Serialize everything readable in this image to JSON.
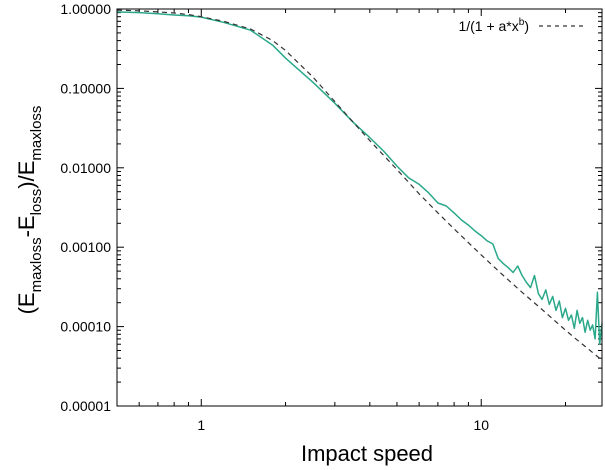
{
  "chart_data": {
    "type": "line",
    "xscale": "log",
    "yscale": "log",
    "xlim": [
      0.5,
      27
    ],
    "ylim": [
      1e-05,
      1
    ],
    "xlabel": "Impact speed",
    "ylabel_parts": {
      "open": "(E",
      "sub1": "maxloss",
      "mid1": "-E",
      "sub2": "loss",
      "mid2": ")/E",
      "sub3": "maxloss"
    },
    "x_ticks": [
      {
        "value": 1,
        "label": "1"
      },
      {
        "value": 10,
        "label": "10"
      }
    ],
    "y_ticks": [
      {
        "value": 1,
        "label": "1.00000"
      },
      {
        "value": 0.1,
        "label": "0.10000"
      },
      {
        "value": 0.01,
        "label": "0.01000"
      },
      {
        "value": 0.001,
        "label": "0.00100"
      },
      {
        "value": 0.0001,
        "label": "0.00010"
      },
      {
        "value": 1e-05,
        "label": "0.00001"
      }
    ],
    "legend": {
      "position": "top-right",
      "label_base": "1/(1 + a*x",
      "label_sup": "b",
      "label_close": ")"
    },
    "colors": {
      "data": "#2aa88a",
      "fit": "#333333",
      "axis": "#000000"
    },
    "series": [
      {
        "style": "solid",
        "x": [
          0.5,
          0.6,
          0.7,
          0.8,
          0.9,
          1.0,
          1.2,
          1.5,
          1.8,
          2.0,
          2.5,
          3.0,
          3.5,
          4.0,
          4.5,
          5.0,
          5.5,
          6.0,
          6.5,
          7.0,
          7.5,
          8.0,
          8.5,
          9.0,
          9.5,
          10.0,
          10.5,
          11.0,
          11.5,
          12.0,
          12.5,
          13.0,
          13.5,
          14.0,
          14.5,
          15.0,
          15.5,
          16.0,
          16.5,
          17.0,
          17.5,
          18.0,
          18.5,
          19.0,
          19.5,
          20.0,
          20.5,
          21.0,
          21.5,
          22.0,
          22.5,
          23.0,
          23.5,
          24.0,
          24.5,
          25.0,
          25.5,
          26.0,
          26.5,
          27.0
        ],
        "y": [
          0.92,
          0.9,
          0.87,
          0.84,
          0.82,
          0.79,
          0.68,
          0.54,
          0.35,
          0.24,
          0.12,
          0.065,
          0.037,
          0.024,
          0.016,
          0.0105,
          0.0075,
          0.0062,
          0.0048,
          0.0036,
          0.0033,
          0.0027,
          0.0022,
          0.0019,
          0.0016,
          0.0014,
          0.0012,
          0.0011,
          0.00072,
          0.00062,
          0.00055,
          0.00048,
          0.00058,
          0.00044,
          0.00036,
          0.00031,
          0.00044,
          0.00026,
          0.00022,
          0.00029,
          0.00019,
          0.00024,
          0.00016,
          0.00021,
          0.00013,
          0.00017,
          0.00012,
          0.00014,
          9.5e-05,
          0.00016,
          0.00011,
          0.00013,
          8.5e-05,
          0.00012,
          9e-05,
          0.000105,
          7e-05,
          0.00027,
          6e-05,
          0.00011
        ]
      },
      {
        "style": "dashed",
        "x": [
          0.5,
          0.6,
          0.7,
          0.8,
          0.9,
          1.0,
          1.2,
          1.5,
          1.8,
          2.0,
          2.5,
          3.0,
          3.5,
          4.0,
          5.0,
          6.0,
          7.0,
          8.0,
          10.0,
          12.0,
          14.0,
          16.0,
          18.0,
          20.0,
          22.0,
          24.0,
          26.0,
          27.0
        ],
        "y": [
          0.97,
          0.95,
          0.92,
          0.89,
          0.85,
          0.8,
          0.7,
          0.56,
          0.4,
          0.3,
          0.14,
          0.068,
          0.037,
          0.022,
          0.0095,
          0.0047,
          0.0027,
          0.0017,
          0.0008,
          0.00044,
          0.00027,
          0.00018,
          0.000125,
          9e-05,
          6.8e-05,
          5.3e-05,
          4.2e-05,
          3.8e-05
        ]
      }
    ]
  }
}
